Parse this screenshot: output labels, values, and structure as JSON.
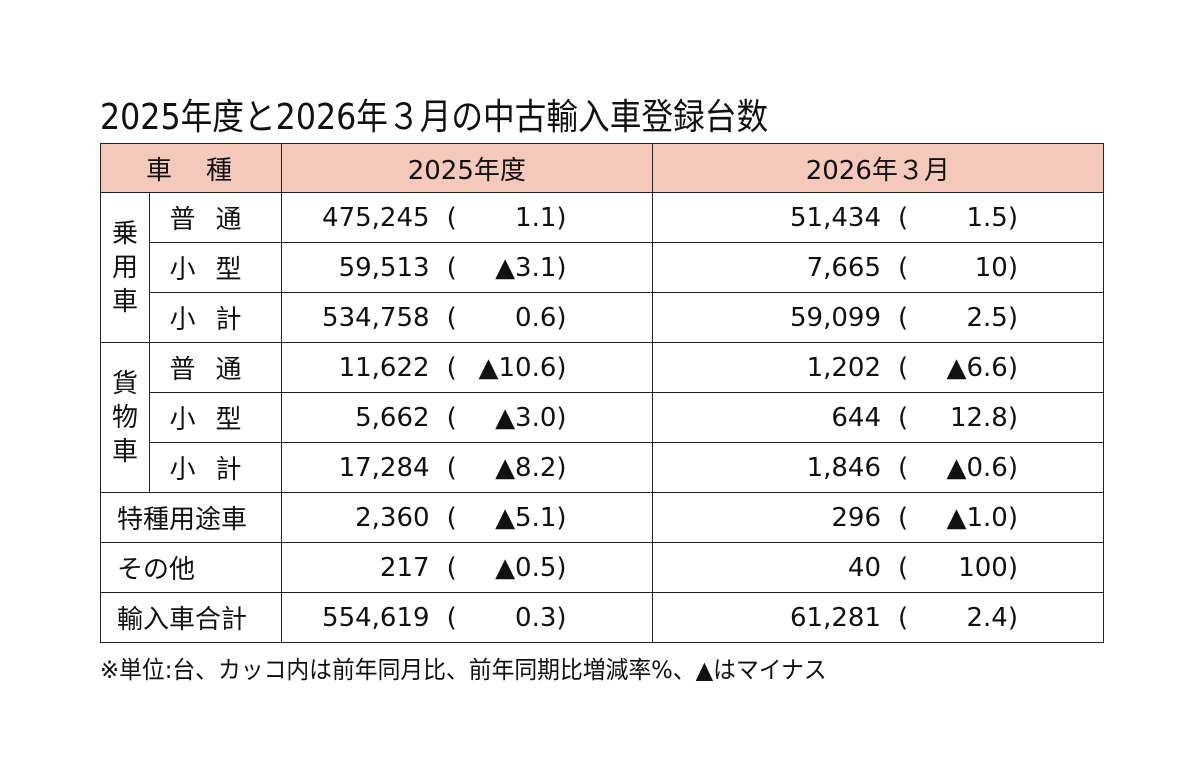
{
  "title": "2025年度と2026年３月の中古輸入車登録台数",
  "headers": [
    "車　種",
    "2025年度",
    "2026年３月"
  ],
  "groups": {
    "passenger": "乗\n用\n車",
    "cargo": "貨\n物\n車"
  },
  "rows": [
    {
      "label": "普通",
      "fy_num": "475,245",
      "fy_pct": "1.1",
      "m_num": "51,434",
      "m_pct": "1.5"
    },
    {
      "label": "小型",
      "fy_num": "59,513",
      "fy_pct": "▲3.1",
      "m_num": "7,665",
      "m_pct": "10"
    },
    {
      "label": "小計",
      "fy_num": "534,758",
      "fy_pct": "0.6",
      "m_num": "59,099",
      "m_pct": "2.5"
    },
    {
      "label": "普通",
      "fy_num": "11,622",
      "fy_pct": "▲10.6",
      "m_num": "1,202",
      "m_pct": "▲6.6"
    },
    {
      "label": "小型",
      "fy_num": "5,662",
      "fy_pct": "▲3.0",
      "m_num": "644",
      "m_pct": "12.8"
    },
    {
      "label": "小計",
      "fy_num": "17,284",
      "fy_pct": "▲8.2",
      "m_num": "1,846",
      "m_pct": "▲0.6"
    },
    {
      "label": "特種用途車",
      "fy_num": "2,360",
      "fy_pct": "▲5.1",
      "m_num": "296",
      "m_pct": "▲1.0"
    },
    {
      "label": "その他",
      "fy_num": "217",
      "fy_pct": "▲0.5",
      "m_num": "40",
      "m_pct": "100"
    },
    {
      "label": "輸入車合計",
      "fy_num": "554,619",
      "fy_pct": "0.3",
      "m_num": "61,281",
      "m_pct": "2.4"
    }
  ],
  "note": "※単位:台、カッコ内は前年同月比、前年同期比増減率%、▲はマイナス",
  "colors": {
    "header_bg": "#f4c8bb"
  }
}
